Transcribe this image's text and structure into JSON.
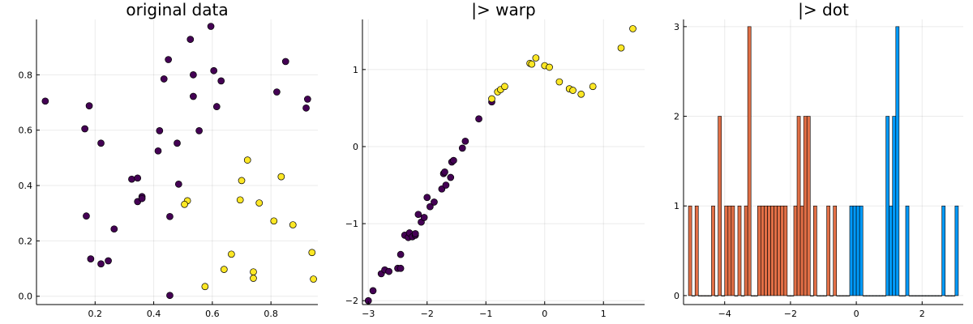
{
  "chart_data": [
    {
      "type": "scatter",
      "title": "original data",
      "xlabel": "",
      "ylabel": "",
      "xlim": [
        0.0,
        0.96
      ],
      "ylim": [
        -0.03,
        1.0
      ],
      "xticks": [
        0.2,
        0.4,
        0.6,
        0.8
      ],
      "xtick_labels": [
        "0.2",
        "0.4",
        "0.6",
        "0.8"
      ],
      "yticks": [
        0.0,
        0.2,
        0.4,
        0.6,
        0.8
      ],
      "ytick_labels": [
        "0.0",
        "0.2",
        "0.4",
        "0.6",
        "0.8"
      ],
      "grid": true,
      "series": [
        {
          "color": "#440154",
          "points": [
            [
              0.03,
              0.705
            ],
            [
              0.18,
              0.688
            ],
            [
              0.165,
              0.605
            ],
            [
              0.22,
              0.553
            ],
            [
              0.17,
              0.29
            ],
            [
              0.185,
              0.135
            ],
            [
              0.22,
              0.117
            ],
            [
              0.245,
              0.128
            ],
            [
              0.265,
              0.243
            ],
            [
              0.325,
              0.423
            ],
            [
              0.345,
              0.427
            ],
            [
              0.345,
              0.342
            ],
            [
              0.36,
              0.36
            ],
            [
              0.36,
              0.353
            ],
            [
              0.415,
              0.525
            ],
            [
              0.42,
              0.598
            ],
            [
              0.435,
              0.785
            ],
            [
              0.45,
              0.855
            ],
            [
              0.48,
              0.553
            ],
            [
              0.485,
              0.405
            ],
            [
              0.455,
              0.288
            ],
            [
              0.455,
              0.003
            ],
            [
              0.525,
              0.928
            ],
            [
              0.535,
              0.8
            ],
            [
              0.535,
              0.722
            ],
            [
              0.555,
              0.598
            ],
            [
              0.595,
              0.975
            ],
            [
              0.605,
              0.815
            ],
            [
              0.615,
              0.685
            ],
            [
              0.63,
              0.778
            ],
            [
              0.82,
              0.738
            ],
            [
              0.85,
              0.848
            ],
            [
              0.92,
              0.68
            ],
            [
              0.925,
              0.712
            ]
          ]
        },
        {
          "color": "#FDE725",
          "points": [
            [
              0.72,
              0.492
            ],
            [
              0.7,
              0.418
            ],
            [
              0.695,
              0.348
            ],
            [
              0.76,
              0.337
            ],
            [
              0.835,
              0.432
            ],
            [
              0.81,
              0.272
            ],
            [
              0.875,
              0.258
            ],
            [
              0.94,
              0.158
            ],
            [
              0.945,
              0.062
            ],
            [
              0.515,
              0.345
            ],
            [
              0.505,
              0.332
            ],
            [
              0.575,
              0.035
            ],
            [
              0.64,
              0.097
            ],
            [
              0.665,
              0.152
            ],
            [
              0.74,
              0.088
            ],
            [
              0.74,
              0.065
            ]
          ]
        }
      ]
    },
    {
      "type": "scatter",
      "title": "|> warp",
      "xlabel": "",
      "ylabel": "",
      "xlim": [
        -3.1,
        1.7
      ],
      "ylim": [
        -2.05,
        1.65
      ],
      "xticks": [
        -3,
        -2,
        -1,
        0,
        1
      ],
      "xtick_labels": [
        "−3",
        "−2",
        "−1",
        "0",
        "1"
      ],
      "yticks": [
        -2,
        -1,
        0,
        1
      ],
      "ytick_labels": [
        "−2",
        "−1",
        "0",
        "1"
      ],
      "grid": true,
      "series": [
        {
          "color": "#440154",
          "points": [
            [
              -3.0,
              -2.0
            ],
            [
              -2.92,
              -1.87
            ],
            [
              -2.78,
              -1.65
            ],
            [
              -2.72,
              -1.6
            ],
            [
              -2.65,
              -1.62
            ],
            [
              -2.5,
              -1.58
            ],
            [
              -2.45,
              -1.58
            ],
            [
              -2.45,
              -1.4
            ],
            [
              -2.38,
              -1.15
            ],
            [
              -2.32,
              -1.18
            ],
            [
              -2.3,
              -1.12
            ],
            [
              -2.25,
              -1.17
            ],
            [
              -2.2,
              -1.15
            ],
            [
              -2.2,
              -1.13
            ],
            [
              -2.15,
              -0.88
            ],
            [
              -2.1,
              -0.98
            ],
            [
              -2.05,
              -0.92
            ],
            [
              -2.0,
              -0.66
            ],
            [
              -1.95,
              -0.78
            ],
            [
              -1.88,
              -0.72
            ],
            [
              -1.75,
              -0.55
            ],
            [
              -1.72,
              -0.35
            ],
            [
              -1.7,
              -0.33
            ],
            [
              -1.68,
              -0.5
            ],
            [
              -1.6,
              -0.4
            ],
            [
              -1.58,
              -0.2
            ],
            [
              -1.55,
              -0.18
            ],
            [
              -1.4,
              -0.02
            ],
            [
              -1.35,
              0.07
            ],
            [
              -1.12,
              0.36
            ],
            [
              -0.9,
              0.58
            ]
          ]
        },
        {
          "color": "#FDE725",
          "points": [
            [
              -0.9,
              0.62
            ],
            [
              -0.8,
              0.71
            ],
            [
              -0.75,
              0.74
            ],
            [
              -0.68,
              0.78
            ],
            [
              -0.25,
              1.08
            ],
            [
              -0.22,
              1.07
            ],
            [
              -0.15,
              1.15
            ],
            [
              0.0,
              1.05
            ],
            [
              0.08,
              1.03
            ],
            [
              0.25,
              0.84
            ],
            [
              0.42,
              0.75
            ],
            [
              0.48,
              0.73
            ],
            [
              0.62,
              0.68
            ],
            [
              0.82,
              0.78
            ],
            [
              1.3,
              1.28
            ],
            [
              1.5,
              1.53
            ]
          ]
        }
      ]
    },
    {
      "type": "bar",
      "title": "|> dot",
      "xlabel": "",
      "ylabel": "",
      "xlim": [
        -5.25,
        3.25
      ],
      "ylim": [
        -0.1,
        3.08
      ],
      "xticks": [
        -4,
        -2,
        0,
        2
      ],
      "xtick_labels": [
        "−4",
        "−2",
        "0",
        "2"
      ],
      "yticks": [
        0,
        1,
        2,
        3
      ],
      "ytick_labels": [
        "0",
        "1",
        "2",
        "3"
      ],
      "grid": true,
      "bin_edges": [
        -5.1,
        -0.2,
        0.2,
        3.1
      ],
      "bin_width": 0.1,
      "series": [
        {
          "color": "#E26F46",
          "counts": [
            1,
            0,
            1,
            0,
            0,
            0,
            0,
            1,
            0,
            2,
            0,
            1,
            1,
            1,
            0,
            1,
            0,
            1,
            3,
            0,
            0,
            1,
            1,
            1,
            1,
            1,
            1,
            1,
            1,
            1,
            0,
            0,
            1,
            2,
            1,
            2,
            2,
            0,
            1,
            0,
            0,
            0,
            1,
            0,
            1,
            0,
            0,
            0,
            0
          ]
        },
        {
          "color": "#009AFA",
          "counts": [
            1,
            1,
            1,
            1
          ]
        },
        {
          "color": "#009AFA",
          "counts": [
            0,
            0,
            0,
            0,
            0,
            0,
            0,
            2,
            1,
            2,
            3,
            0,
            0,
            1,
            0,
            0,
            0,
            0,
            0,
            0,
            0,
            0,
            0,
            0,
            1,
            0,
            0,
            0,
            1
          ]
        }
      ]
    }
  ]
}
